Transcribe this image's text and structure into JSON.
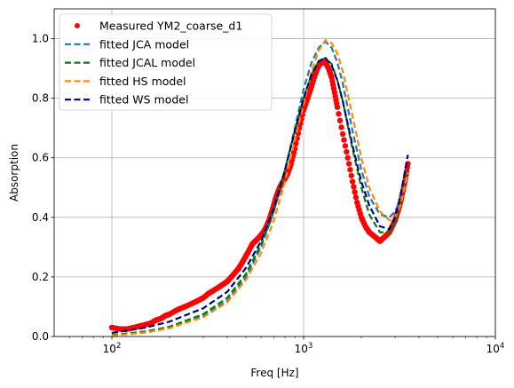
{
  "chart_data": {
    "type": "line",
    "title": "",
    "xlabel": "Freq [Hz]",
    "ylabel": "Absorption",
    "xscale": "log",
    "xlim": [
      50,
      10000
    ],
    "ylim": [
      0,
      1.1
    ],
    "grid": true,
    "legend_position": "top-left",
    "x_ticks": [
      {
        "value": 100,
        "base": "10",
        "exp": "2"
      },
      {
        "value": 1000,
        "base": "10",
        "exp": "3"
      },
      {
        "value": 10000,
        "base": "10",
        "exp": "4"
      }
    ],
    "y_ticks": [
      {
        "value": 0,
        "label": "0.0"
      },
      {
        "value": 0.2,
        "label": "0.2"
      },
      {
        "value": 0.4,
        "label": "0.4"
      },
      {
        "value": 0.6,
        "label": "0.6"
      },
      {
        "value": 0.8,
        "label": "0.8"
      },
      {
        "value": 1.0,
        "label": "1.0"
      }
    ],
    "series": [
      {
        "name": "Measured YM2_coarse_d1",
        "style": "markers",
        "color": "#ff0000",
        "x": [
          100,
          110,
          120,
          130,
          140,
          150,
          160,
          170,
          180,
          190,
          200,
          220,
          240,
          260,
          280,
          300,
          320,
          340,
          360,
          380,
          400,
          420,
          440,
          460,
          480,
          500,
          520,
          540,
          560,
          580,
          600,
          630,
          660,
          690,
          720,
          750,
          780,
          800,
          830,
          860,
          900,
          950,
          1000,
          1050,
          1100,
          1150,
          1200,
          1250,
          1300,
          1350,
          1400,
          1450,
          1500,
          1600,
          1700,
          1800,
          1900,
          2000,
          2100,
          2200,
          2300,
          2400,
          2500,
          2600,
          2700,
          2800,
          2900,
          3000,
          3100,
          3200,
          3300,
          3400,
          3500
        ],
        "y": [
          0.03,
          0.025,
          0.025,
          0.03,
          0.035,
          0.04,
          0.045,
          0.055,
          0.06,
          0.07,
          0.075,
          0.09,
          0.1,
          0.11,
          0.12,
          0.13,
          0.145,
          0.155,
          0.165,
          0.175,
          0.185,
          0.2,
          0.215,
          0.23,
          0.25,
          0.27,
          0.29,
          0.31,
          0.32,
          0.33,
          0.34,
          0.36,
          0.39,
          0.43,
          0.47,
          0.5,
          0.52,
          0.53,
          0.55,
          0.58,
          0.63,
          0.7,
          0.76,
          0.8,
          0.84,
          0.88,
          0.91,
          0.92,
          0.92,
          0.9,
          0.87,
          0.82,
          0.77,
          0.68,
          0.6,
          0.52,
          0.45,
          0.4,
          0.37,
          0.35,
          0.34,
          0.33,
          0.32,
          0.33,
          0.34,
          0.35,
          0.37,
          0.39,
          0.42,
          0.45,
          0.49,
          0.53,
          0.58
        ]
      },
      {
        "name": "fitted JCA model",
        "style": "dashed",
        "color": "#1f77b4",
        "x": [
          100,
          150,
          200,
          300,
          400,
          500,
          600,
          700,
          800,
          900,
          1000,
          1100,
          1200,
          1300,
          1400,
          1500,
          1600,
          1800,
          2000,
          2200,
          2500,
          2800,
          3000,
          3200,
          3500
        ],
        "y": [
          0.004,
          0.015,
          0.03,
          0.07,
          0.12,
          0.2,
          0.3,
          0.42,
          0.56,
          0.7,
          0.83,
          0.92,
          0.97,
          0.99,
          0.97,
          0.92,
          0.85,
          0.69,
          0.56,
          0.47,
          0.41,
          0.4,
          0.42,
          0.46,
          0.56
        ]
      },
      {
        "name": "fitted JCAL model",
        "style": "dashed",
        "color": "#008000",
        "x": [
          100,
          150,
          200,
          300,
          400,
          500,
          600,
          700,
          800,
          900,
          1000,
          1100,
          1200,
          1300,
          1400,
          1500,
          1600,
          1800,
          2000,
          2200,
          2500,
          2800,
          3000,
          3200,
          3500
        ],
        "y": [
          0.005,
          0.017,
          0.033,
          0.075,
          0.13,
          0.21,
          0.31,
          0.43,
          0.56,
          0.69,
          0.8,
          0.88,
          0.925,
          0.935,
          0.915,
          0.86,
          0.79,
          0.63,
          0.5,
          0.41,
          0.35,
          0.35,
          0.38,
          0.44,
          0.56
        ]
      },
      {
        "name": "fitted HS model",
        "style": "dashed",
        "color": "#ff8c00",
        "x": [
          100,
          150,
          200,
          300,
          400,
          500,
          600,
          700,
          800,
          900,
          1000,
          1100,
          1200,
          1300,
          1400,
          1500,
          1600,
          1800,
          2000,
          2200,
          2500,
          2800,
          3000,
          3200,
          3500
        ],
        "y": [
          0.003,
          0.013,
          0.028,
          0.065,
          0.115,
          0.19,
          0.28,
          0.39,
          0.52,
          0.66,
          0.78,
          0.89,
          0.96,
          0.995,
          0.985,
          0.95,
          0.89,
          0.74,
          0.6,
          0.5,
          0.42,
          0.39,
          0.4,
          0.44,
          0.55
        ]
      },
      {
        "name": "fitted WS model",
        "style": "dashed",
        "color": "#000080",
        "x": [
          100,
          150,
          200,
          300,
          400,
          500,
          600,
          700,
          800,
          900,
          1000,
          1100,
          1200,
          1300,
          1400,
          1500,
          1600,
          1800,
          2000,
          2200,
          2500,
          2800,
          3000,
          3200,
          3500
        ],
        "y": [
          0.012,
          0.03,
          0.05,
          0.095,
          0.15,
          0.23,
          0.32,
          0.43,
          0.56,
          0.69,
          0.8,
          0.88,
          0.925,
          0.935,
          0.91,
          0.86,
          0.79,
          0.64,
          0.52,
          0.44,
          0.37,
          0.36,
          0.4,
          0.47,
          0.61
        ]
      }
    ]
  }
}
